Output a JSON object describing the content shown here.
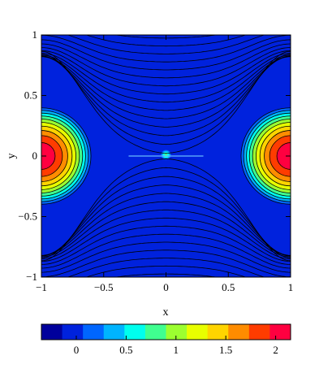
{
  "chart_data": {
    "type": "heatmap",
    "title": "",
    "xlabel": "x",
    "ylabel": "y",
    "xlim": [
      -1,
      1
    ],
    "ylim": [
      -1,
      1
    ],
    "x_ticks": [
      {
        "v": -1,
        "label": "−1"
      },
      {
        "v": -0.5,
        "label": "−0.5"
      },
      {
        "v": 0,
        "label": "0"
      },
      {
        "v": 0.5,
        "label": "0.5"
      },
      {
        "v": 1,
        "label": "1"
      }
    ],
    "y_ticks": [
      {
        "v": 1,
        "label": "1"
      },
      {
        "v": 0.5,
        "label": "0.5"
      },
      {
        "v": 0,
        "label": "0"
      },
      {
        "v": -0.5,
        "label": "−0.5"
      },
      {
        "v": -1,
        "label": "−1"
      }
    ],
    "colorbar": {
      "range": [
        -0.35,
        2.15
      ],
      "ticks": [
        {
          "v": 0,
          "label": "0"
        },
        {
          "v": 0.5,
          "label": "0.5"
        },
        {
          "v": 1,
          "label": "1"
        },
        {
          "v": 1.5,
          "label": "1.5"
        },
        {
          "v": 2,
          "label": "2"
        }
      ],
      "colors": [
        "#00009c",
        "#0022dd",
        "#0066ff",
        "#00b4ff",
        "#00ffee",
        "#40ff90",
        "#9cff30",
        "#e8ff00",
        "#ffd400",
        "#ff8c00",
        "#ff3c00",
        "#ff0040"
      ]
    },
    "background_value": 0,
    "sources": [
      {
        "x": -1,
        "y": 0,
        "peak": 2.1,
        "radius": 0.33
      },
      {
        "x": 1,
        "y": 0,
        "peak": 2.1,
        "radius": 0.33
      },
      {
        "x": 0,
        "y": 0.01,
        "peak": 0.8,
        "radius": 0.035
      }
    ],
    "field_lines": "saddle flow with X-point at origin; lines bow away from y=0 near the x=±1 poles",
    "grid": false,
    "legend": "colorbar-bottom"
  }
}
